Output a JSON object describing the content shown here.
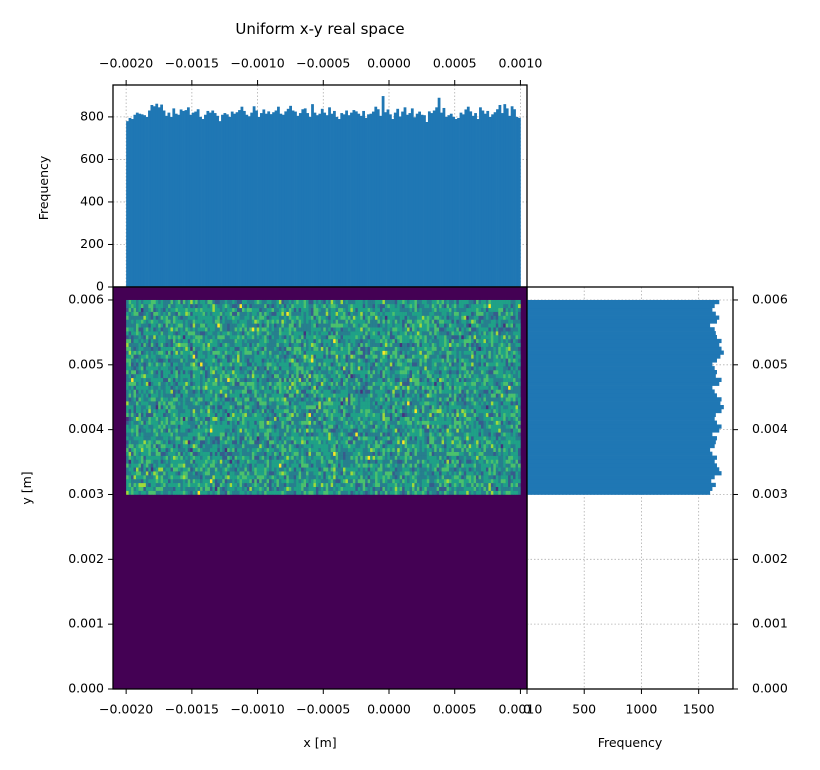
{
  "figure": {
    "title": "Uniform x-y real space"
  },
  "colors": {
    "bar": "#1f77b4",
    "grid": "#b0b0b0",
    "heatmap_bg": "#440154",
    "viridis": [
      "#440154",
      "#46327e",
      "#365c8d",
      "#277f8e",
      "#1fa187",
      "#4ac16d",
      "#a0da39",
      "#fde725"
    ]
  },
  "chart_data": [
    {
      "id": "top_histogram",
      "type": "bar",
      "orientation": "vertical",
      "title": "Uniform x-y real space",
      "xlabel": "",
      "ylabel": "Frequency",
      "xlim": [
        -0.0021,
        0.00105
      ],
      "ylim": [
        0,
        950
      ],
      "xticks": [
        -0.002,
        -0.0015,
        -0.001,
        -0.0005,
        0.0,
        0.0005,
        0.001
      ],
      "xtick_labels": [
        "−0.0020",
        "−0.0015",
        "−0.0010",
        "−0.0005",
        "0.0000",
        "0.0005",
        "0.0010"
      ],
      "yticks": [
        0,
        200,
        400,
        600,
        800
      ],
      "ytick_labels": [
        "0",
        "200",
        "400",
        "600",
        "800"
      ],
      "bin_range": [
        -0.002,
        0.001
      ],
      "values": [
        780,
        795,
        790,
        810,
        820,
        815,
        812,
        808,
        800,
        830,
        856,
        850,
        862,
        845,
        858,
        830,
        805,
        820,
        800,
        840,
        815,
        810,
        835,
        828,
        832,
        845,
        810,
        820,
        825,
        836,
        800,
        790,
        810,
        828,
        820,
        830,
        818,
        805,
        780,
        810,
        818,
        812,
        800,
        825,
        815,
        822,
        832,
        848,
        828,
        810,
        803,
        820,
        850,
        830,
        800,
        818,
        835,
        815,
        826,
        813,
        822,
        830,
        848,
        815,
        810,
        826,
        838,
        852,
        830,
        825,
        805,
        818,
        836,
        840,
        818,
        800,
        860,
        820,
        808,
        815,
        838,
        820,
        808,
        845,
        815,
        828,
        800,
        790,
        818,
        812,
        830,
        808,
        820,
        832,
        826,
        815,
        805,
        828,
        795,
        812,
        815,
        825,
        848,
        836,
        805,
        898,
        822,
        835,
        812,
        790,
        820,
        838,
        802,
        825,
        845,
        810,
        818,
        840,
        798,
        815,
        825,
        810,
        808,
        776,
        826,
        818,
        830,
        845,
        890,
        820,
        842,
        800,
        808,
        815,
        800,
        790,
        795,
        820,
        812,
        835,
        848,
        826,
        805,
        818,
        790,
        845,
        830,
        815,
        828,
        800,
        812,
        822,
        836,
        856,
        818,
        860,
        840,
        805,
        850,
        836,
        800,
        795
      ]
    },
    {
      "id": "heatmap_2d",
      "type": "heatmap",
      "xlabel": "x [m]",
      "ylabel": "y [m]",
      "xlim": [
        -0.0021,
        0.00105
      ],
      "ylim": [
        0.0,
        0.0062
      ],
      "xticks": [
        -0.002,
        -0.0015,
        -0.001,
        -0.0005,
        0.0,
        0.0005,
        0.001
      ],
      "xtick_labels": [
        "−0.0020",
        "−0.0015",
        "−0.0010",
        "−0.0005",
        "0.0000",
        "0.0005",
        "0.0010"
      ],
      "yticks": [
        0.0,
        0.001,
        0.002,
        0.003,
        0.004,
        0.005,
        0.006
      ],
      "ytick_labels": [
        "0.000",
        "0.001",
        "0.002",
        "0.003",
        "0.004",
        "0.005",
        "0.006"
      ],
      "filled_region": {
        "x": [
          -0.002,
          0.001
        ],
        "y": [
          0.003,
          0.006
        ]
      },
      "colormap": "viridis",
      "grid": false
    },
    {
      "id": "right_histogram",
      "type": "bar",
      "orientation": "horizontal",
      "xlabel": "Frequency",
      "ylabel": "",
      "xlim": [
        0,
        1800
      ],
      "ylim": [
        0.0,
        0.0062
      ],
      "xticks": [
        0,
        500,
        1000,
        1500
      ],
      "xtick_labels": [
        "0",
        "500",
        "1000",
        "1500"
      ],
      "yticks": [
        0.0,
        0.001,
        0.002,
        0.003,
        0.004,
        0.005,
        0.006
      ],
      "ytick_labels": [
        "0.000",
        "0.001",
        "0.002",
        "0.003",
        "0.004",
        "0.005",
        "0.006"
      ],
      "bin_range": [
        0.003,
        0.006
      ],
      "values": [
        1600,
        1620,
        1650,
        1610,
        1640,
        1700,
        1680,
        1660,
        1640,
        1660,
        1620,
        1600,
        1640,
        1650,
        1660,
        1620,
        1680,
        1700,
        1660,
        1640,
        1650,
        1700,
        1720,
        1690,
        1700,
        1660,
        1640,
        1620,
        1680,
        1700,
        1650,
        1660,
        1640,
        1620,
        1660,
        1690,
        1720,
        1700,
        1680,
        1700,
        1660,
        1650,
        1640,
        1600,
        1660,
        1680,
        1650,
        1620,
        1640,
        1680
      ]
    }
  ]
}
